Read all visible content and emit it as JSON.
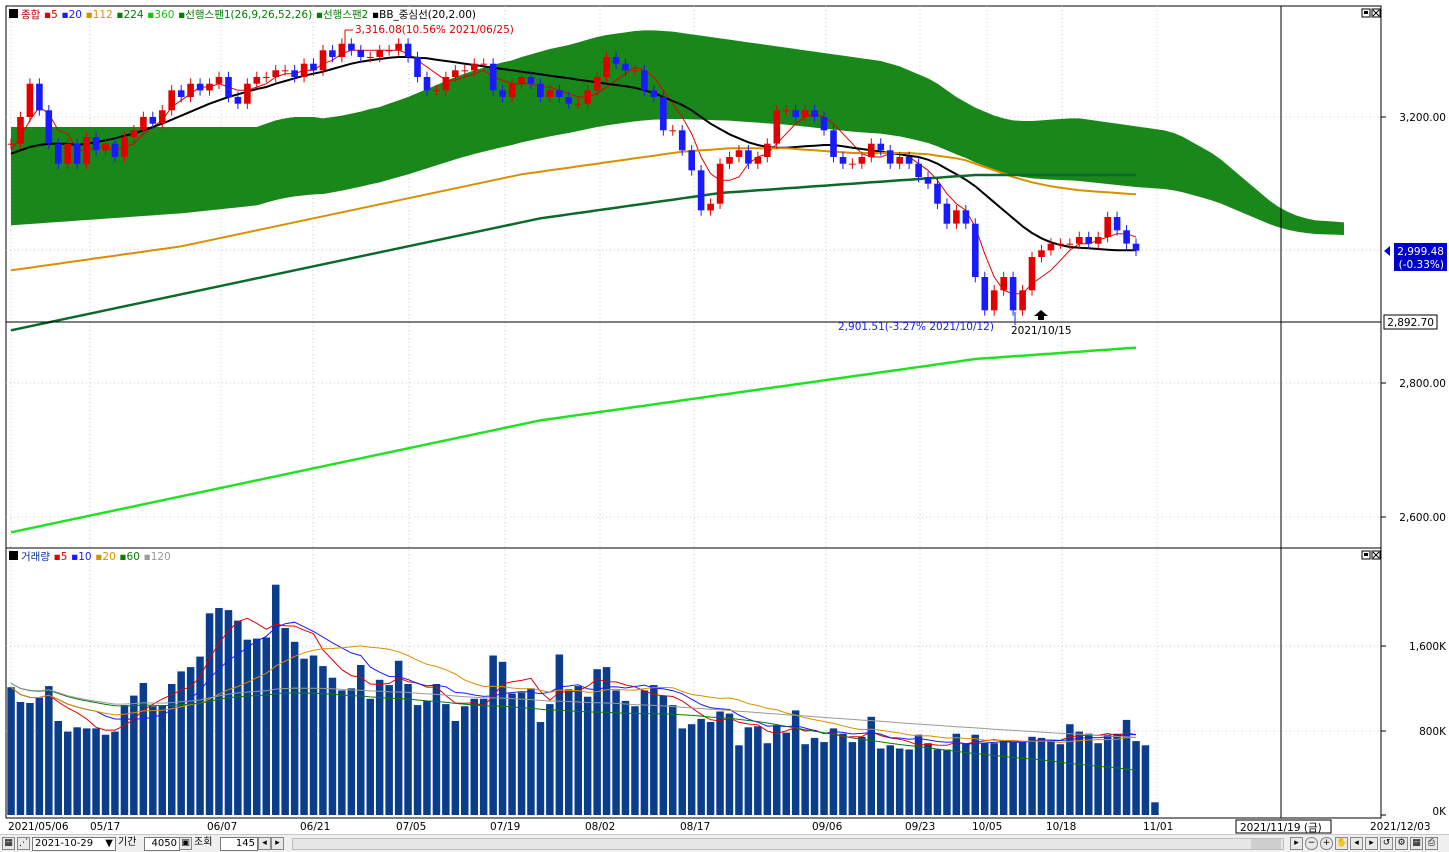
{
  "legend_price": [
    {
      "text": "종합",
      "color": "#c00000"
    },
    {
      "text": "5",
      "color": "#e00000"
    },
    {
      "text": "20",
      "color": "#1a1aff"
    },
    {
      "text": "112",
      "color": "#d89000"
    },
    {
      "text": "224",
      "color": "#0a7a0a"
    },
    {
      "text": "360",
      "color": "#18c018"
    },
    {
      "text": "선행스팬1(26,9,26,52,26)",
      "color": "#008000"
    },
    {
      "text": "선행스팬2",
      "color": "#008000"
    },
    {
      "text": "BB_중심선(20,2.00)",
      "color": "#000000"
    }
  ],
  "legend_volume": [
    {
      "text": "거래량",
      "color": "#003399"
    },
    {
      "text": "5",
      "color": "#e00000"
    },
    {
      "text": "10",
      "color": "#1a1aff"
    },
    {
      "text": "20",
      "color": "#d89000"
    },
    {
      "text": "60",
      "color": "#0a7a0a"
    },
    {
      "text": "120",
      "color": "#9a9a9a"
    }
  ],
  "annotations": {
    "high": "3,316.08(10.56% 2021/06/25)",
    "low": "2,901.51(-3.27% 2021/10/12)",
    "date_mark": "2021/10/15"
  },
  "price_axis": {
    "ticks": [
      "3,200.00",
      "2,800.00",
      "2,600.00"
    ],
    "current": "2,999.48",
    "current_change": "(-0.33%)",
    "crosshair": "2,892.70"
  },
  "volume_axis": {
    "ticks": [
      "1,600K",
      "800K",
      "0K"
    ]
  },
  "date_axis": {
    "labels": [
      "2021/05/06",
      "05/17",
      "06/07",
      "06/21",
      "07/05",
      "07/19",
      "08/02",
      "08/17",
      "09/06",
      "09/23",
      "10/05",
      "10/18",
      "11/01",
      "2021/12/03"
    ],
    "crosshair_date": "2021/11/19 (금)"
  },
  "toolbar": {
    "date": "2021-10-29",
    "period_label": "기간",
    "period_value": "4050",
    "lookup_label": "조회",
    "lookup_value": "145"
  },
  "chart_data": {
    "type": "candlestick",
    "title": "종합",
    "dates": [
      "05/06",
      "05/07",
      "05/10",
      "05/11",
      "05/12",
      "05/13",
      "05/14",
      "05/17",
      "05/18",
      "05/20",
      "05/21",
      "05/24",
      "05/25",
      "05/26",
      "05/27",
      "05/28",
      "05/31",
      "06/01",
      "06/02",
      "06/03",
      "06/04",
      "06/07",
      "06/08",
      "06/09",
      "06/10",
      "06/11",
      "06/14",
      "06/15",
      "06/16",
      "06/17",
      "06/18",
      "06/21",
      "06/22",
      "06/23",
      "06/24",
      "06/25",
      "06/28",
      "06/29",
      "06/30",
      "07/01",
      "07/02",
      "07/05",
      "07/06",
      "07/07",
      "07/08",
      "07/09",
      "07/12",
      "07/13",
      "07/14",
      "07/15",
      "07/16",
      "07/19",
      "07/20",
      "07/21",
      "07/22",
      "07/23",
      "07/26",
      "07/27",
      "07/28",
      "07/29",
      "07/30",
      "08/02",
      "08/03",
      "08/04",
      "08/05",
      "08/06",
      "08/09",
      "08/10",
      "08/11",
      "08/12",
      "08/13",
      "08/17",
      "08/18",
      "08/19",
      "08/20",
      "08/23",
      "08/24",
      "08/25",
      "08/26",
      "08/27",
      "08/30",
      "08/31",
      "09/01",
      "09/02",
      "09/03",
      "09/06",
      "09/07",
      "09/08",
      "09/09",
      "09/10",
      "09/13",
      "09/14",
      "09/15",
      "09/16",
      "09/17",
      "09/23",
      "09/24",
      "09/27",
      "09/28",
      "09/29",
      "09/30",
      "10/01",
      "10/05",
      "10/06",
      "10/07",
      "10/08",
      "10/12",
      "10/13",
      "10/14",
      "10/15",
      "10/18",
      "10/19",
      "10/20",
      "10/21",
      "10/22",
      "10/25",
      "10/26",
      "10/27",
      "10/28",
      "10/29"
    ],
    "close": [
      3160,
      3200,
      3250,
      3210,
      3160,
      3130,
      3160,
      3130,
      3170,
      3150,
      3160,
      3140,
      3170,
      3180,
      3200,
      3190,
      3210,
      3240,
      3230,
      3250,
      3240,
      3250,
      3260,
      3230,
      3220,
      3250,
      3260,
      3260,
      3270,
      3270,
      3260,
      3280,
      3270,
      3300,
      3290,
      3310,
      3300,
      3290,
      3290,
      3300,
      3300,
      3310,
      3290,
      3260,
      3240,
      3240,
      3260,
      3270,
      3270,
      3280,
      3280,
      3240,
      3230,
      3250,
      3260,
      3250,
      3230,
      3240,
      3230,
      3220,
      3220,
      3240,
      3260,
      3290,
      3280,
      3270,
      3270,
      3240,
      3230,
      3180,
      3180,
      3150,
      3120,
      3060,
      3070,
      3130,
      3140,
      3150,
      3130,
      3140,
      3160,
      3210,
      3210,
      3200,
      3210,
      3200,
      3180,
      3140,
      3130,
      3130,
      3140,
      3160,
      3150,
      3130,
      3140,
      3130,
      3110,
      3100,
      3070,
      3040,
      3060,
      3040,
      2960,
      2910,
      2940,
      2960,
      2910,
      2940,
      2990,
      3000,
      3010,
      3010,
      3010,
      3020,
      3010,
      3020,
      3050,
      3030,
      3010,
      2999.48
    ],
    "ylim_price": [
      2560,
      3360
    ],
    "series": [
      {
        "name": "5",
        "values": [
          3150,
          3170,
          3195,
          3215,
          3205,
          3180,
          3175,
          3150,
          3150,
          3155,
          3155,
          3150,
          3155,
          3160,
          3175,
          3185,
          3195,
          3215,
          3225,
          3235,
          3245,
          3245,
          3250,
          3245,
          3240,
          3240,
          3245,
          3250,
          3260,
          3265,
          3265,
          3270,
          3270,
          3280,
          3285,
          3295,
          3300,
          3300,
          3300,
          3300,
          3300,
          3300,
          3295,
          3285,
          3275,
          3265,
          3255,
          3255,
          3260,
          3265,
          3270,
          3260,
          3255,
          3250,
          3250,
          3250,
          3245,
          3245,
          3240,
          3235,
          3230,
          3230,
          3235,
          3245,
          3255,
          3265,
          3275,
          3270,
          3260,
          3240,
          3220,
          3200,
          3175,
          3140,
          3115,
          3105,
          3105,
          3110,
          3130,
          3140,
          3145,
          3160,
          3175,
          3190,
          3200,
          3205,
          3200,
          3190,
          3175,
          3160,
          3145,
          3140,
          3140,
          3145,
          3145,
          3140,
          3130,
          3120,
          3105,
          3085,
          3070,
          3060,
          3035,
          2995,
          2960,
          2940,
          2935,
          2935,
          2950,
          2960,
          2970,
          2985,
          3000,
          3010,
          3010,
          3015,
          3020,
          3025,
          3025,
          3020
        ]
      },
      {
        "name": "20",
        "values": [
          3145,
          3150,
          3155,
          3158,
          3160,
          3160,
          3160,
          3158,
          3160,
          3162,
          3165,
          3168,
          3172,
          3175,
          3180,
          3185,
          3190,
          3196,
          3202,
          3208,
          3214,
          3220,
          3225,
          3230,
          3234,
          3238,
          3242,
          3245,
          3250,
          3254,
          3258,
          3262,
          3265,
          3268,
          3272,
          3276,
          3280,
          3283,
          3285,
          3287,
          3289,
          3290,
          3290,
          3289,
          3288,
          3286,
          3284,
          3282,
          3280,
          3278,
          3276,
          3274,
          3272,
          3270,
          3268,
          3266,
          3264,
          3262,
          3260,
          3258,
          3256,
          3254,
          3252,
          3250,
          3248,
          3246,
          3244,
          3240,
          3236,
          3230,
          3224,
          3218,
          3210,
          3200,
          3190,
          3182,
          3174,
          3168,
          3162,
          3158,
          3155,
          3154,
          3154,
          3155,
          3156,
          3157,
          3158,
          3158,
          3156,
          3154,
          3152,
          3150,
          3148,
          3146,
          3144,
          3142,
          3140,
          3136,
          3130,
          3122,
          3114,
          3106,
          3096,
          3084,
          3072,
          3060,
          3048,
          3036,
          3026,
          3018,
          3012,
          3008,
          3005,
          3004,
          3003,
          3002,
          3001,
          3000,
          3000,
          3000
        ]
      },
      {
        "name": "112",
        "values": [
          2970,
          2972,
          2974,
          2976,
          2978,
          2980,
          2982,
          2984,
          2986,
          2988,
          2990,
          2992,
          2994,
          2996,
          2998,
          3000,
          3002,
          3004,
          3006,
          3009,
          3012,
          3015,
          3018,
          3021,
          3024,
          3027,
          3030,
          3033,
          3036,
          3039,
          3042,
          3045,
          3048,
          3051,
          3054,
          3057,
          3060,
          3063,
          3066,
          3069,
          3072,
          3075,
          3078,
          3081,
          3084,
          3087,
          3090,
          3093,
          3096,
          3099,
          3102,
          3105,
          3108,
          3111,
          3114,
          3116,
          3118,
          3120,
          3122,
          3124,
          3126,
          3128,
          3130,
          3132,
          3134,
          3136,
          3138,
          3140,
          3142,
          3144,
          3146,
          3148,
          3149,
          3150,
          3151,
          3152,
          3153,
          3153,
          3153,
          3153,
          3153,
          3153,
          3153,
          3152,
          3151,
          3150,
          3149,
          3148,
          3147,
          3146,
          3146,
          3146,
          3146,
          3146,
          3146,
          3146,
          3145,
          3144,
          3142,
          3140,
          3138,
          3135,
          3130,
          3125,
          3120,
          3115,
          3110,
          3106,
          3102,
          3099,
          3096,
          3094,
          3092,
          3090,
          3089,
          3088,
          3087,
          3086,
          3085,
          3084
        ]
      },
      {
        "name": "224",
        "values": [
          2880,
          2883,
          2886,
          2889,
          2892,
          2895,
          2898,
          2901,
          2904,
          2907,
          2910,
          2913,
          2916,
          2919,
          2922,
          2925,
          2928,
          2931,
          2934,
          2937,
          2940,
          2943,
          2946,
          2949,
          2952,
          2955,
          2958,
          2961,
          2964,
          2967,
          2970,
          2973,
          2976,
          2979,
          2982,
          2985,
          2988,
          2991,
          2994,
          2997,
          3000,
          3003,
          3006,
          3009,
          3012,
          3015,
          3018,
          3021,
          3024,
          3027,
          3030,
          3033,
          3036,
          3039,
          3042,
          3045,
          3048,
          3050,
          3052,
          3054,
          3056,
          3058,
          3060,
          3062,
          3064,
          3066,
          3068,
          3070,
          3072,
          3074,
          3076,
          3078,
          3080,
          3082,
          3084,
          3086,
          3087,
          3088,
          3089,
          3090,
          3091,
          3092,
          3093,
          3094,
          3095,
          3096,
          3097,
          3098,
          3099,
          3100,
          3101,
          3102,
          3103,
          3104,
          3105,
          3106,
          3107,
          3108,
          3109,
          3110,
          3111,
          3112,
          3113,
          3113,
          3113,
          3113,
          3113,
          3113,
          3113,
          3113,
          3113,
          3113,
          3113,
          3113,
          3113,
          3113,
          3113,
          3113,
          3113,
          3113
        ]
      },
      {
        "name": "360",
        "values": [
          2577,
          2580,
          2583,
          2586,
          2589,
          2592,
          2595,
          2598,
          2601,
          2604,
          2607,
          2610,
          2613,
          2616,
          2619,
          2622,
          2625,
          2628,
          2631,
          2634,
          2637,
          2640,
          2643,
          2646,
          2649,
          2652,
          2655,
          2658,
          2661,
          2664,
          2667,
          2670,
          2673,
          2676,
          2679,
          2682,
          2685,
          2688,
          2691,
          2694,
          2697,
          2700,
          2703,
          2706,
          2709,
          2712,
          2715,
          2718,
          2721,
          2724,
          2727,
          2730,
          2733,
          2736,
          2739,
          2742,
          2745,
          2747,
          2749,
          2751,
          2753,
          2755,
          2757,
          2759,
          2761,
          2763,
          2765,
          2767,
          2769,
          2771,
          2773,
          2775,
          2777,
          2779,
          2781,
          2783,
          2785,
          2787,
          2789,
          2791,
          2793,
          2795,
          2797,
          2799,
          2801,
          2803,
          2805,
          2807,
          2809,
          2811,
          2813,
          2815,
          2817,
          2819,
          2821,
          2823,
          2825,
          2827,
          2829,
          2831,
          2833,
          2835,
          2837,
          2838,
          2839,
          2840,
          2841,
          2842,
          2843,
          2844,
          2845,
          2846,
          2847,
          2848,
          2849,
          2850,
          2851,
          2852,
          2853,
          2854
        ]
      }
    ],
    "volume_series": {
      "name": "거래량",
      "ylim": [
        0,
        2200
      ],
      "values": [
        1210,
        1070,
        1060,
        1110,
        1220,
        890,
        790,
        830,
        820,
        820,
        760,
        790,
        1040,
        1130,
        1250,
        1030,
        1040,
        1240,
        1360,
        1400,
        1500,
        1910,
        1960,
        1940,
        1840,
        1660,
        1670,
        1680,
        2180,
        1770,
        1640,
        1480,
        1510,
        1410,
        1300,
        1180,
        1200,
        1420,
        1100,
        1280,
        1230,
        1460,
        1240,
        1040,
        1080,
        1240,
        1050,
        890,
        1030,
        1100,
        1100,
        1510,
        1450,
        1150,
        1160,
        1200,
        880,
        1050,
        1520,
        1190,
        1220,
        1120,
        1380,
        1400,
        1180,
        1080,
        1030,
        1180,
        1230,
        1130,
        1040,
        820,
        860,
        910,
        880,
        980,
        960,
        660,
        830,
        840,
        680,
        850,
        780,
        990,
        670,
        730,
        690,
        820,
        770,
        690,
        740,
        930,
        630,
        660,
        630,
        620,
        760,
        680,
        620,
        620,
        770,
        680,
        760,
        680,
        680,
        700,
        690,
        690,
        740,
        730,
        700,
        670,
        860,
        790,
        770,
        680,
        760,
        770,
        900,
        700,
        660,
        120
      ]
    }
  }
}
